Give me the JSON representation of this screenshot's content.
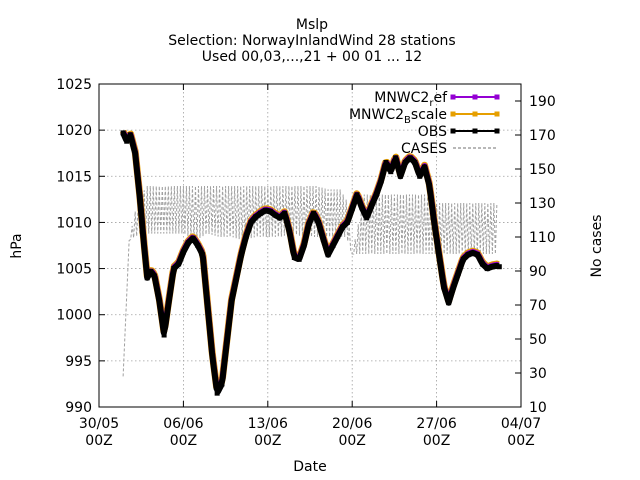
{
  "chart_data": {
    "type": "line",
    "title_lines": [
      "Mslp",
      "Selection: NorwayInlandWind     28 stations",
      "Used 00,03,...,21 + 00 01 ... 12"
    ],
    "xlabel": "Date",
    "ylabel": "hPa",
    "y2label": "No cases",
    "xlim": [
      0,
      35
    ],
    "ylim": [
      990,
      1025
    ],
    "y2lim": [
      10,
      200
    ],
    "x_ticks": [
      {
        "x": 0,
        "line1": "30/05",
        "line2": "00Z"
      },
      {
        "x": 7,
        "line1": "06/06",
        "line2": "00Z"
      },
      {
        "x": 14,
        "line1": "13/06",
        "line2": "00Z"
      },
      {
        "x": 21,
        "line1": "20/06",
        "line2": "00Z"
      },
      {
        "x": 28,
        "line1": "27/06",
        "line2": "00Z"
      },
      {
        "x": 35,
        "line1": "04/07",
        "line2": "00Z"
      }
    ],
    "y_ticks": [
      "990",
      "995",
      "1000",
      "1005",
      "1010",
      "1015",
      "1020",
      "1025"
    ],
    "y2_ticks": [
      "10",
      "30",
      "50",
      "70",
      "90",
      "110",
      "130",
      "150",
      "170",
      "190"
    ],
    "grid": true,
    "legend_position": "top-right",
    "colors": {
      "MNWC2_ref": "#9400d3",
      "MNWC2_Bscale": "#e69f00",
      "OBS": "#000000",
      "CASES": "#a0a0a0"
    },
    "legend": [
      {
        "key": "MNWC2_ref",
        "label_main": "MNWC2",
        "label_sub": "r",
        "label_rest": "ef"
      },
      {
        "key": "MNWC2_Bscale",
        "label_main": "MNWC2",
        "label_sub": "B",
        "label_rest": "scale"
      },
      {
        "key": "OBS",
        "label_main": "OBS",
        "label_sub": "",
        "label_rest": ""
      },
      {
        "key": "CASES",
        "label_main": "CASES",
        "label_sub": "",
        "label_rest": ""
      }
    ],
    "series": [
      {
        "name": "OBS",
        "x": [
          2.0,
          2.3,
          2.6,
          3.0,
          3.4,
          3.7,
          4.0,
          4.3,
          4.6,
          5.0,
          5.4,
          5.8,
          6.2,
          6.6,
          7.0,
          7.4,
          7.8,
          8.2,
          8.6,
          9.0,
          9.4,
          9.8,
          10.2,
          10.6,
          11.0,
          11.4,
          11.8,
          12.2,
          12.6,
          13.0,
          13.4,
          13.8,
          14.2,
          14.6,
          15.0,
          15.4,
          15.8,
          16.2,
          16.6,
          17.0,
          17.4,
          17.8,
          18.2,
          18.6,
          19.0,
          19.4,
          19.8,
          20.2,
          20.6,
          21.0,
          21.4,
          21.8,
          22.2,
          22.6,
          23.0,
          23.4,
          23.8,
          24.2,
          24.6,
          25.0,
          25.4,
          25.8,
          26.2,
          26.6,
          27.0,
          27.4,
          27.8,
          28.2,
          28.6,
          29.0,
          29.4,
          29.8,
          30.2,
          30.6,
          31.0,
          31.4,
          31.8,
          32.2,
          32.6,
          33.0,
          33.2
        ],
        "y": [
          1019.7,
          1018.8,
          1019.5,
          1017.5,
          1012.5,
          1008.0,
          1004.0,
          1004.7,
          1004.2,
          1001.5,
          997.8,
          1001.5,
          1005.0,
          1005.5,
          1006.8,
          1007.8,
          1008.3,
          1007.5,
          1006.5,
          1001.0,
          995.5,
          991.5,
          992.5,
          997.0,
          1001.5,
          1004.0,
          1006.5,
          1008.5,
          1010.0,
          1010.6,
          1011.0,
          1011.3,
          1011.2,
          1010.8,
          1010.5,
          1011.0,
          1009.0,
          1006.2,
          1006.0,
          1007.5,
          1009.8,
          1011.0,
          1010.0,
          1008.2,
          1006.5,
          1007.5,
          1008.5,
          1009.5,
          1010.0,
          1011.5,
          1013.0,
          1011.6,
          1010.5,
          1011.8,
          1013.0,
          1014.5,
          1016.5,
          1015.5,
          1017.0,
          1015.0,
          1016.5,
          1017.0,
          1016.5,
          1015.0,
          1016.0,
          1014.0,
          1010.0,
          1006.5,
          1003.0,
          1001.3,
          1003.0,
          1004.5,
          1006.0,
          1006.5,
          1006.7,
          1006.5,
          1005.5,
          1005.0,
          1005.2,
          1005.3,
          1005.2
        ]
      },
      {
        "name": "CASES",
        "x": [
          2.0,
          2.5,
          3.0,
          3.5,
          4.0,
          5.0,
          6.0,
          7.0,
          8.0,
          9.0,
          10.0,
          11.0,
          12.0,
          13.0,
          14.0,
          15.0,
          16.0,
          17.0,
          18.0,
          19.0,
          20.0,
          20.5,
          21.0,
          22.0,
          23.0,
          24.0,
          25.0,
          26.0,
          27.0,
          28.0,
          29.0,
          30.0,
          31.0,
          32.0,
          33.0
        ],
        "y": [
          28,
          108,
          125,
          135,
          140,
          140,
          140,
          140,
          140,
          140,
          140,
          140,
          140,
          140,
          140,
          140,
          140,
          140,
          140,
          138,
          138,
          132,
          100,
          135,
          135,
          135,
          135,
          135,
          135,
          130,
          130,
          130,
          130,
          130,
          130
        ],
        "y_low": [
          28,
          108,
          110,
          112,
          112,
          112,
          112,
          112,
          108,
          112,
          110,
          110,
          108,
          110,
          110,
          110,
          112,
          110,
          110,
          110,
          110,
          110,
          100,
          100,
          100,
          100,
          100,
          100,
          100,
          100,
          100,
          100,
          100,
          100,
          100
        ]
      }
    ]
  }
}
